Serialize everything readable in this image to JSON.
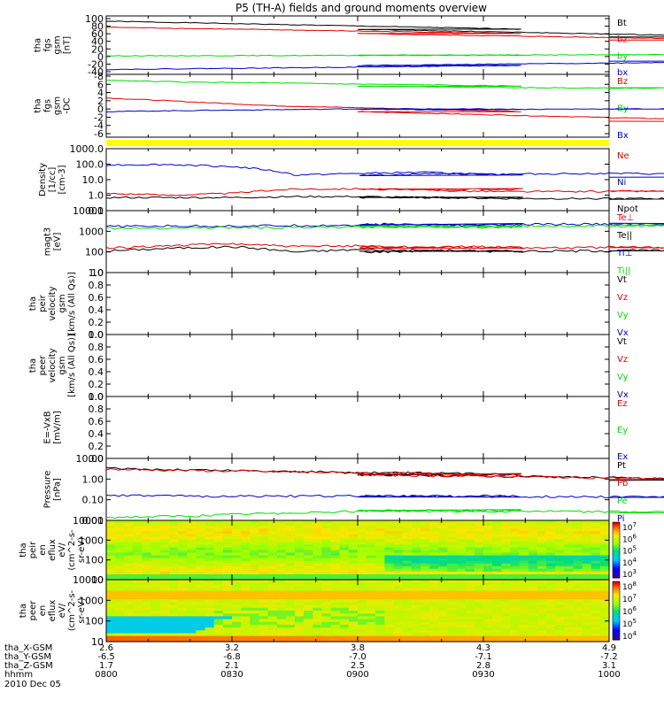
{
  "title": "P5 (TH-A) fields and ground moments overview",
  "date": "2010 Dec 05",
  "colors": {
    "black": "#000000",
    "red": "#e00000",
    "green": "#00dd00",
    "blue": "#0000c8",
    "yellow": "#ffff00"
  },
  "ephemeris": {
    "labels": [
      "tha_X-GSM",
      "tha_Y-GSM",
      "tha_Z-GSM",
      "hhmm"
    ],
    "x_gsm": [
      "2.6",
      "3.2",
      "3.8",
      "4.3",
      "4.9"
    ],
    "y_gsm": [
      "-6.5",
      "-6.8",
      "-7.0",
      "-7.1",
      "-7.2"
    ],
    "z_gsm": [
      "1.7",
      "2.1",
      "2.5",
      "2.8",
      "3.1"
    ],
    "hhmm": [
      "0800",
      "0830",
      "0900",
      "0930",
      "1000"
    ]
  },
  "chart_data": [
    {
      "type": "line",
      "panel": "fgs",
      "ylabel": [
        "tha",
        "fgs",
        "gsm",
        "[nT]"
      ],
      "ylim": [
        -45,
        100
      ],
      "yticks": [
        "100",
        "80",
        "60",
        "40",
        "20",
        "0",
        "-20",
        "-40"
      ],
      "x": [
        800,
        1000
      ],
      "series": [
        {
          "name": "Bt",
          "color": "black",
          "values": [
            87,
            47
          ]
        },
        {
          "name": "bz",
          "color": "red",
          "values": [
            72,
            40
          ]
        },
        {
          "name": "by",
          "color": "green",
          "values": [
            1,
            4
          ]
        },
        {
          "name": "bx",
          "color": "blue",
          "values": [
            -33,
            -13
          ]
        }
      ]
    },
    {
      "type": "line",
      "panel": "fgs_dsc",
      "ylabel": [
        "tha",
        "fgs",
        "gsm",
        "-DC"
      ],
      "ylim": [
        -8,
        8
      ],
      "yticks": [
        "-8",
        "6",
        "4",
        "2",
        "0",
        "-2",
        "-4",
        "-6"
      ],
      "x": [
        800,
        820,
        840,
        860,
        880,
        900,
        920,
        940,
        960,
        980,
        1000
      ],
      "series": [
        {
          "name": "Bz",
          "color": "red",
          "values": [
            2.0,
            1.0,
            0.0,
            -0.5,
            -1.0,
            -1.5,
            -2.0,
            -2.5,
            -3.0,
            -3.5,
            -4.0
          ]
        },
        {
          "name": "By",
          "color": "green",
          "values": [
            6.5,
            6.0,
            5.8,
            5.5,
            5.3,
            5.0,
            4.8,
            4.6,
            4.5,
            4.5,
            4.6
          ]
        },
        {
          "name": "Bx",
          "color": "blue",
          "values": [
            -1.5,
            -1.2,
            -1.0,
            -0.8,
            -0.8,
            -0.9,
            -1.0,
            -0.9,
            -0.8,
            -0.8,
            -0.8
          ]
        }
      ]
    },
    {
      "type": "line",
      "panel": "density",
      "scale": "log",
      "ylabel": [
        "Density",
        "[1/cc]",
        "[cm-3]"
      ],
      "ylim": [
        0.1,
        1000
      ],
      "yticks": [
        "1000.0",
        "100.0",
        "10.0",
        "1.0",
        "0.1"
      ],
      "x": [
        800,
        815,
        830,
        845,
        860,
        875,
        890,
        905,
        920,
        935,
        950,
        965,
        980,
        1000
      ],
      "series": [
        {
          "name": "Ne",
          "color": "red",
          "values": [
            1.3,
            1.0,
            1.3,
            2.5,
            2.6,
            2.2,
            2.4,
            2.4,
            2.0,
            1.7,
            1.7,
            1.8,
            1.8,
            1.8
          ]
        },
        {
          "name": "Ni",
          "color": "blue",
          "values": [
            90,
            95,
            70,
            20,
            25,
            30,
            22,
            20,
            25,
            22,
            25,
            25,
            22,
            15
          ]
        },
        {
          "name": "Npot",
          "color": "black",
          "values": [
            0.7,
            0.7,
            0.7,
            0.8,
            0.8,
            0.7,
            0.7,
            0.7,
            0.7,
            0.6,
            0.6,
            0.6,
            0.6,
            0.6
          ]
        }
      ]
    },
    {
      "type": "line",
      "panel": "temperature",
      "scale": "log",
      "ylabel": [
        "magt3",
        "[eV]"
      ],
      "ylim": [
        10,
        10000
      ],
      "yticks": [
        "10000",
        "1000",
        "100",
        "10"
      ],
      "x": [
        800,
        815,
        830,
        845,
        860,
        875,
        890,
        905,
        920,
        935,
        950,
        965,
        980,
        1000
      ],
      "series": [
        {
          "name": "Te⊥",
          "color": "red",
          "values": [
            150,
            200,
            250,
            180,
            200,
            170,
            180,
            160,
            170,
            160,
            160,
            170,
            165,
            160
          ]
        },
        {
          "name": "Te||",
          "color": "black",
          "values": [
            110,
            150,
            180,
            100,
            130,
            120,
            110,
            100,
            120,
            110,
            110,
            120,
            115,
            120
          ]
        },
        {
          "name": "Ti⊥",
          "color": "blue",
          "values": [
            1700,
            1800,
            1800,
            1900,
            2000,
            2100,
            2000,
            2200,
            2000,
            2100,
            2200,
            2200,
            2300,
            2200
          ]
        },
        {
          "name": "Ti||",
          "color": "green",
          "values": [
            1400,
            1450,
            1500,
            1500,
            1600,
            1700,
            1600,
            1700,
            1700,
            1800,
            1800,
            1800,
            1900,
            1900
          ]
        }
      ]
    },
    {
      "type": "line",
      "panel": "peir_velocity",
      "ylabel": [
        "tha",
        "peir",
        "velocity",
        "gsm",
        "[km/s (All Qs)]"
      ],
      "ylim": [
        0,
        1
      ],
      "yticks": [
        "1.0",
        "0.8",
        "0.6",
        "0.4",
        "0.2",
        "0.0"
      ],
      "series": [
        {
          "name": "Vt",
          "color": "black",
          "values": []
        },
        {
          "name": "Vz",
          "color": "red",
          "values": []
        },
        {
          "name": "Vy",
          "color": "green",
          "values": []
        },
        {
          "name": "Vx",
          "color": "blue",
          "values": []
        }
      ]
    },
    {
      "type": "line",
      "panel": "peer_velocity",
      "ylabel": [
        "tha",
        "peer",
        "velocity",
        "gsm",
        "[km/s (All Qs)]"
      ],
      "ylim": [
        0,
        1
      ],
      "yticks": [
        "1.0",
        "0.8",
        "0.6",
        "0.4",
        "0.2",
        "0.0"
      ],
      "series": [
        {
          "name": "Vt",
          "color": "black",
          "values": []
        },
        {
          "name": "Vz",
          "color": "red",
          "values": []
        },
        {
          "name": "Vy",
          "color": "green",
          "values": []
        },
        {
          "name": "Vx",
          "color": "blue",
          "values": []
        }
      ]
    },
    {
      "type": "line",
      "panel": "efield",
      "ylabel": [
        "E=-VxB",
        "[mV/m]"
      ],
      "ylim": [
        0,
        1
      ],
      "yticks": [
        "1.0",
        "0.8",
        "0.6",
        "0.4",
        "0.2",
        "0.0"
      ],
      "series": [
        {
          "name": "Ez",
          "color": "red",
          "values": []
        },
        {
          "name": "Ey",
          "color": "green",
          "values": []
        },
        {
          "name": "Ex",
          "color": "blue",
          "values": []
        }
      ]
    },
    {
      "type": "line",
      "panel": "pressure",
      "scale": "log",
      "ylabel": [
        "Pressure",
        "[nPa]"
      ],
      "ylim": [
        0.01,
        10
      ],
      "yticks": [
        "10.00",
        "1.00",
        "0.10",
        "0.01"
      ],
      "x": [
        800,
        820,
        840,
        860,
        880,
        900,
        920,
        940,
        960,
        980,
        1000
      ],
      "series": [
        {
          "name": "Pt",
          "color": "black",
          "values": [
            3.2,
            2.8,
            2.4,
            2.1,
            1.9,
            1.7,
            1.5,
            1.35,
            1.2,
            1.05,
            0.95
          ]
        },
        {
          "name": "Pb",
          "color": "red",
          "values": [
            3.0,
            2.6,
            2.3,
            2.0,
            1.8,
            1.6,
            1.45,
            1.3,
            1.15,
            1.0,
            0.9
          ]
        },
        {
          "name": "Pe",
          "color": "green",
          "values": [
            0.014,
            0.016,
            0.022,
            0.028,
            0.03,
            0.03,
            0.028,
            0.028,
            0.026,
            0.026,
            0.024
          ]
        },
        {
          "name": "Pi",
          "color": "blue",
          "values": [
            0.16,
            0.15,
            0.15,
            0.15,
            0.15,
            0.15,
            0.15,
            0.14,
            0.14,
            0.14,
            0.14
          ]
        }
      ]
    },
    {
      "type": "heatmap",
      "panel": "peir_eflux",
      "scale": "log",
      "ylabel": [
        "tha",
        "peir",
        "en",
        "eflux",
        "eV/",
        "(cm^2-s-",
        "sr-eV)"
      ],
      "ylim": [
        10,
        10000
      ],
      "yticks": [
        "10000",
        "1000",
        "100",
        "10"
      ],
      "colorbar": {
        "ticks": [
          "10^7",
          "10^6",
          "10^5",
          "10^4",
          "10^3"
        ],
        "range": [
          3,
          7
        ]
      }
    },
    {
      "type": "heatmap",
      "panel": "peer_eflux",
      "scale": "log",
      "ylabel": [
        "tha",
        "peer",
        "en",
        "eflux",
        "eV/",
        "(cm^2-s-",
        "sr-eV)"
      ],
      "ylim": [
        10,
        10000
      ],
      "yticks": [
        "10000",
        "1000",
        "100",
        "10"
      ],
      "colorbar": {
        "ticks": [
          "10^8",
          "10^7",
          "10^6",
          "10^5",
          "10^4"
        ],
        "range": [
          3.5,
          8
        ]
      }
    }
  ]
}
